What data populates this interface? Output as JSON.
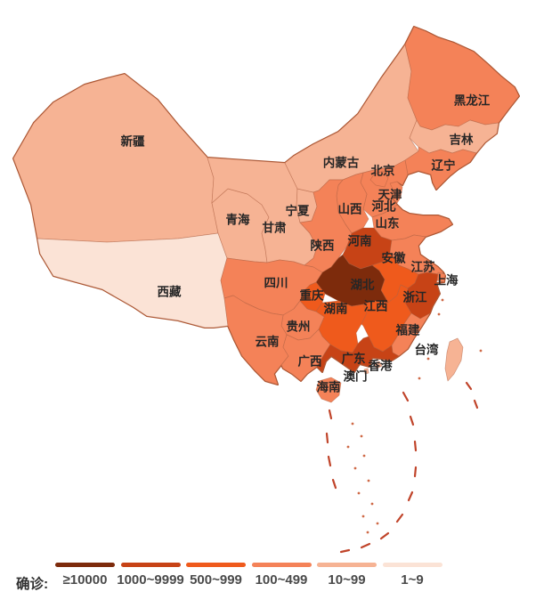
{
  "legend": {
    "title": "确诊:",
    "items": [
      {
        "range": "≥10000",
        "color": "#7d2b0c"
      },
      {
        "range": "1000~9999",
        "color": "#c74316"
      },
      {
        "range": "500~999",
        "color": "#ef5a1c"
      },
      {
        "range": "100~499",
        "color": "#f48258"
      },
      {
        "range": "10~99",
        "color": "#f6b394"
      },
      {
        "range": "1~9",
        "color": "#fbe3d6"
      }
    ]
  },
  "map_data": {
    "type": "choropleth",
    "metric_label": "确诊",
    "provinces": [
      {
        "id": "xinjiang",
        "name": "新疆",
        "range": "10~99",
        "label_xy": [
          149,
          159
        ]
      },
      {
        "id": "xizang",
        "name": "西藏",
        "range": "1~9",
        "label_xy": [
          190,
          328
        ]
      },
      {
        "id": "qinghai",
        "name": "青海",
        "range": "10~99",
        "label_xy": [
          267,
          247
        ]
      },
      {
        "id": "gansu",
        "name": "甘肃",
        "range": "10~99",
        "label_xy": [
          308,
          256
        ]
      },
      {
        "id": "ningxia",
        "name": "宁夏",
        "range": "10~99",
        "label_xy": [
          334,
          237
        ]
      },
      {
        "id": "neimenggu",
        "name": "内蒙古",
        "range": "10~99",
        "label_xy": [
          383,
          183
        ]
      },
      {
        "id": "heilongjiang",
        "name": "黑龙江",
        "range": "100~499",
        "label_xy": [
          530,
          113
        ]
      },
      {
        "id": "jilin",
        "name": "吉林",
        "range": "10~99",
        "label_xy": [
          518,
          157
        ]
      },
      {
        "id": "liaoning",
        "name": "辽宁",
        "range": "100~499",
        "label_xy": [
          498,
          186
        ]
      },
      {
        "id": "hebei",
        "name": "河北",
        "range": "100~499",
        "label_xy": [
          431,
          232
        ]
      },
      {
        "id": "beijing",
        "name": "北京",
        "range": "100~499",
        "label_xy": [
          430,
          192
        ]
      },
      {
        "id": "tianjin",
        "name": "天津",
        "range": "100~499",
        "label_xy": [
          438,
          219
        ]
      },
      {
        "id": "shanxi",
        "name": "山西",
        "range": "100~499",
        "label_xy": [
          393,
          235
        ]
      },
      {
        "id": "shandong",
        "name": "山东",
        "range": "100~499",
        "label_xy": [
          435,
          251
        ]
      },
      {
        "id": "shaanxi",
        "name": "陕西",
        "range": "100~499",
        "label_xy": [
          362,
          276
        ]
      },
      {
        "id": "henan",
        "name": "河南",
        "range": "1000~9999",
        "label_xy": [
          404,
          271
        ]
      },
      {
        "id": "jiangsu",
        "name": "江苏",
        "range": "100~499",
        "label_xy": [
          475,
          300
        ]
      },
      {
        "id": "anhui",
        "name": "安徽",
        "range": "500~999",
        "label_xy": [
          442,
          290
        ]
      },
      {
        "id": "hubei",
        "name": "湖北",
        "range": "≥10000",
        "label_xy": [
          407,
          320
        ]
      },
      {
        "id": "zhejiang",
        "name": "浙江",
        "range": "1000~9999",
        "label_xy": [
          466,
          334
        ]
      },
      {
        "id": "shanghai",
        "name": "上海",
        "range": "100~499",
        "label_xy": [
          501,
          315
        ]
      },
      {
        "id": "chongqing",
        "name": "重庆",
        "range": "500~999",
        "label_xy": [
          350,
          332
        ]
      },
      {
        "id": "sichuan",
        "name": "四川",
        "range": "100~499",
        "label_xy": [
          310,
          318
        ]
      },
      {
        "id": "hunan",
        "name": "湖南",
        "range": "500~999",
        "label_xy": [
          377,
          347
        ]
      },
      {
        "id": "jiangxi",
        "name": "江西",
        "range": "500~999",
        "label_xy": [
          422,
          344
        ]
      },
      {
        "id": "guizhou",
        "name": "贵州",
        "range": "100~499",
        "label_xy": [
          335,
          367
        ]
      },
      {
        "id": "yunnan",
        "name": "云南",
        "range": "100~499",
        "label_xy": [
          300,
          384
        ]
      },
      {
        "id": "fujian",
        "name": "福建",
        "range": "100~499",
        "label_xy": [
          458,
          371
        ]
      },
      {
        "id": "guangxi",
        "name": "广西",
        "range": "100~499",
        "label_xy": [
          348,
          406
        ]
      },
      {
        "id": "guangdong",
        "name": "广东",
        "range": "1000~9999",
        "label_xy": [
          397,
          403
        ]
      },
      {
        "id": "xianggang",
        "name": "香港",
        "range": "10~99",
        "label_xy": [
          427,
          411
        ]
      },
      {
        "id": "aomen",
        "name": "澳门",
        "range": "10~99",
        "label_xy": [
          399,
          423
        ]
      },
      {
        "id": "hainan",
        "name": "海南",
        "range": "100~499",
        "label_xy": [
          369,
          435
        ]
      },
      {
        "id": "taiwan",
        "name": "台湾",
        "range": "10~99",
        "label_xy": [
          479,
          393
        ]
      }
    ]
  }
}
